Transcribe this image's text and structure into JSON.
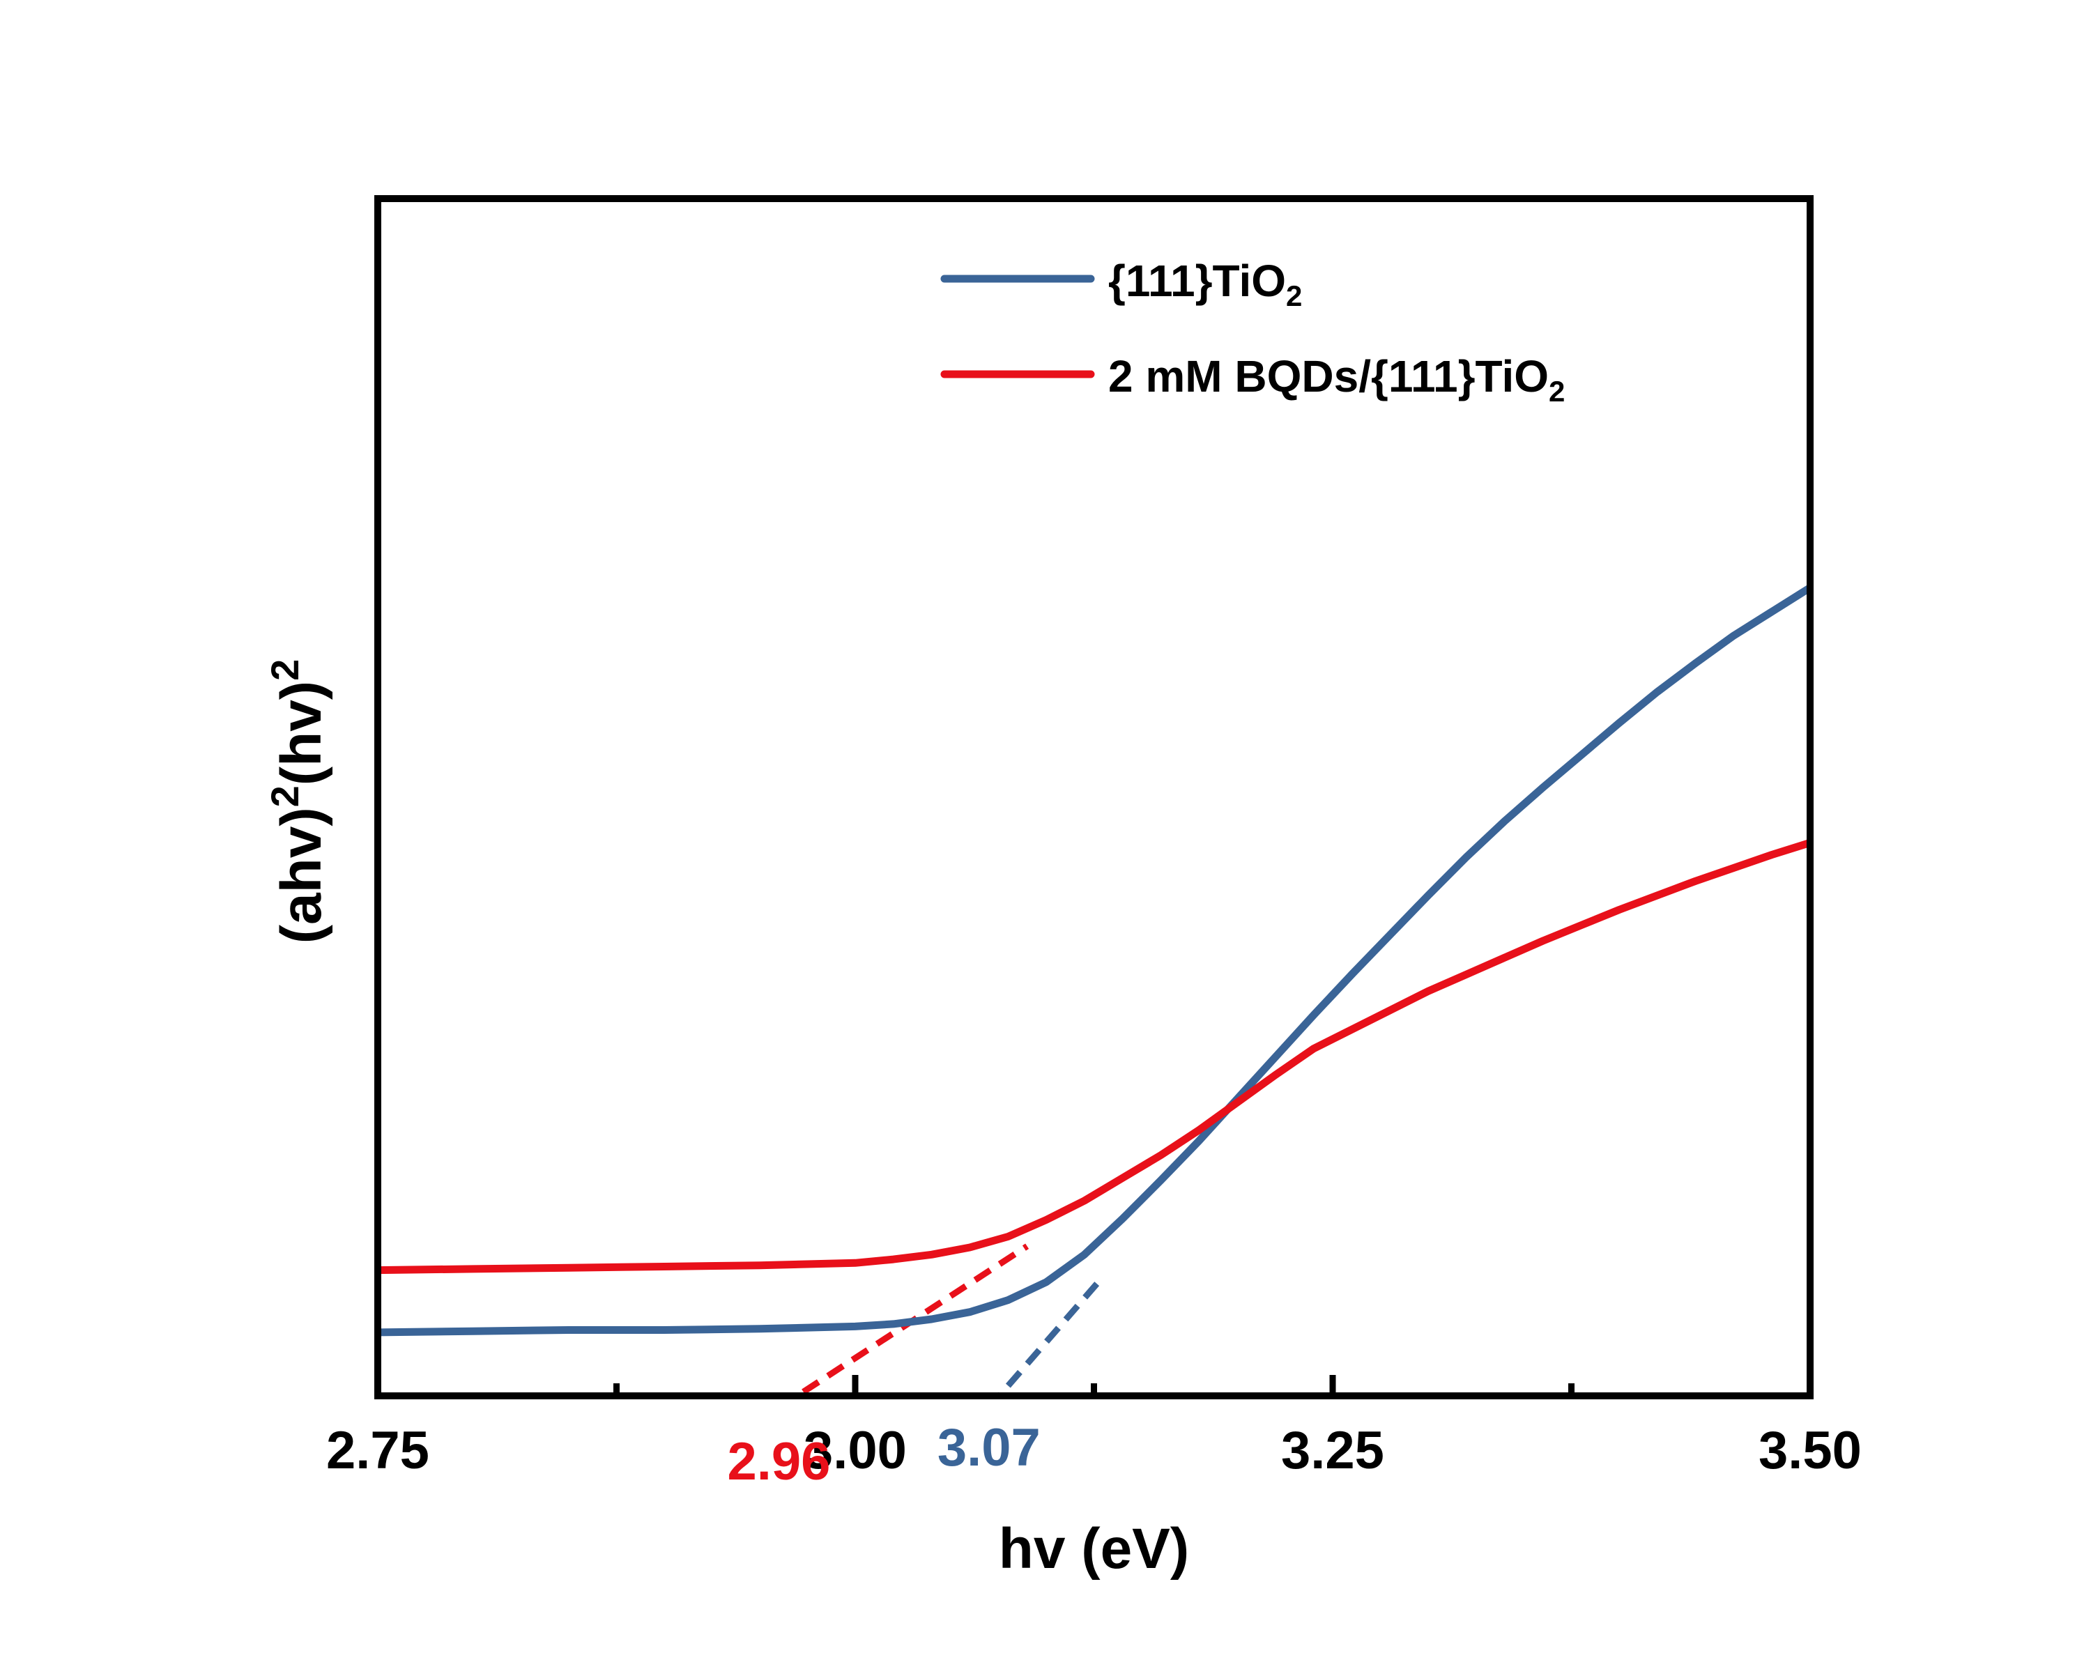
{
  "chart_data": {
    "type": "line",
    "xlabel": "hv (eV)",
    "ylabel": {
      "parts": [
        "(ahv)",
        "2",
        "(hv)",
        "2"
      ]
    },
    "xlim": [
      2.75,
      3.5
    ],
    "ylim": [
      0,
      1
    ],
    "y_ticks_shown": false,
    "x_ticks": [
      {
        "value": 2.75,
        "label": "2.75"
      },
      {
        "value": 3.0,
        "label": "3.00"
      },
      {
        "value": 3.25,
        "label": "3.25"
      },
      {
        "value": 3.5,
        "label": "3.50"
      }
    ],
    "x_minor_ticks": [
      2.875,
      3.125,
      3.375
    ],
    "legend": {
      "position": "top-right",
      "entries": [
        {
          "series": 0,
          "parts": [
            "{111}TiO",
            "2"
          ]
        },
        {
          "series": 1,
          "parts": [
            "2 mM BQDs/{111}TiO",
            "2"
          ]
        }
      ]
    },
    "series": [
      {
        "name": "{111}TiO2",
        "color": "#3A6497",
        "x": [
          2.75,
          2.8,
          2.85,
          2.9,
          2.95,
          3.0,
          3.02,
          3.04,
          3.06,
          3.08,
          3.1,
          3.12,
          3.14,
          3.16,
          3.18,
          3.2,
          3.22,
          3.24,
          3.26,
          3.28,
          3.3,
          3.32,
          3.34,
          3.36,
          3.38,
          3.4,
          3.42,
          3.44,
          3.46,
          3.48,
          3.5
        ],
        "values": [
          0.053,
          0.054,
          0.055,
          0.055,
          0.056,
          0.058,
          0.06,
          0.064,
          0.07,
          0.08,
          0.095,
          0.118,
          0.148,
          0.18,
          0.213,
          0.248,
          0.283,
          0.318,
          0.352,
          0.385,
          0.418,
          0.45,
          0.48,
          0.508,
          0.535,
          0.562,
          0.588,
          0.612,
          0.635,
          0.655,
          0.675
        ]
      },
      {
        "name": "2 mM BQDs/{111}TiO2",
        "color": "#E8101A",
        "x": [
          2.75,
          2.8,
          2.85,
          2.9,
          2.95,
          3.0,
          3.02,
          3.04,
          3.06,
          3.08,
          3.1,
          3.12,
          3.14,
          3.16,
          3.18,
          3.2,
          3.22,
          3.24,
          3.26,
          3.28,
          3.3,
          3.32,
          3.34,
          3.36,
          3.38,
          3.4,
          3.42,
          3.44,
          3.46,
          3.48,
          3.5
        ],
        "values": [
          0.105,
          0.106,
          0.107,
          0.108,
          0.109,
          0.111,
          0.114,
          0.118,
          0.124,
          0.133,
          0.147,
          0.163,
          0.182,
          0.201,
          0.222,
          0.245,
          0.268,
          0.29,
          0.306,
          0.322,
          0.338,
          0.352,
          0.366,
          0.38,
          0.393,
          0.406,
          0.418,
          0.43,
          0.441,
          0.452,
          0.462
        ]
      }
    ],
    "tangent_lines": [
      {
        "series": 0,
        "color": "#3A6497",
        "x": [
          3.07,
          3.13
        ],
        "values": [
          -0.01,
          0.1
        ]
      },
      {
        "series": 1,
        "color": "#E8101A",
        "x": [
          2.96,
          3.09
        ],
        "values": [
          -0.01,
          0.125
        ]
      }
    ],
    "annotations": [
      {
        "label": "2.96",
        "x": 2.96,
        "color": "#E8101A"
      },
      {
        "label": "3.07",
        "x": 3.07,
        "color": "#3A6497"
      }
    ]
  }
}
